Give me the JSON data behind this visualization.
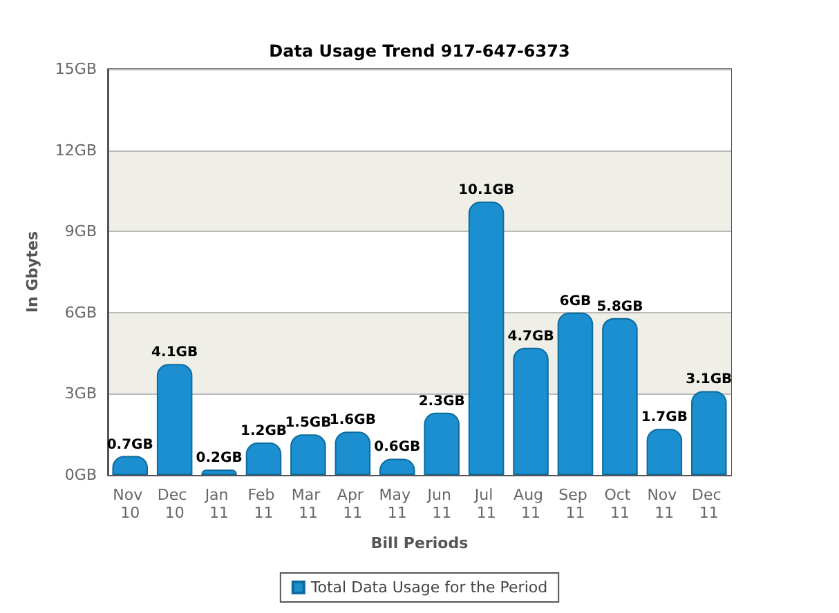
{
  "chart_data": {
    "type": "bar",
    "title": "Data Usage Trend 917-647-6373",
    "xlabel": "Bill Periods",
    "ylabel": "In Gbytes",
    "categories": [
      "Nov 10",
      "Dec 10",
      "Jan 11",
      "Feb 11",
      "Mar 11",
      "Apr 11",
      "May 11",
      "Jun 11",
      "Jul 11",
      "Aug 11",
      "Sep 11",
      "Oct 11",
      "Nov 11",
      "Dec 11"
    ],
    "series": [
      {
        "name": "Total Data Usage for the Period",
        "color": "#1b8fcf",
        "values": [
          0.7,
          4.1,
          0.2,
          1.2,
          1.5,
          1.6,
          0.6,
          2.3,
          10.1,
          4.7,
          6,
          5.8,
          1.7,
          3.1
        ],
        "value_labels": [
          "0.7GB",
          "4.1GB",
          "0.2GB",
          "1.2GB",
          "1.5GB",
          "1.6GB",
          "0.6GB",
          "2.3GB",
          "10.1GB",
          "4.7GB",
          "6GB",
          "5.8GB",
          "1.7GB",
          "3.1GB"
        ]
      }
    ],
    "ylim": [
      0,
      15
    ],
    "yticks": [
      {
        "value": 0,
        "label": "0GB"
      },
      {
        "value": 3,
        "label": "3GB"
      },
      {
        "value": 6,
        "label": "6GB"
      },
      {
        "value": 9,
        "label": "9GB"
      },
      {
        "value": 12,
        "label": "12GB"
      },
      {
        "value": 15,
        "label": "15GB"
      }
    ],
    "grid": "y",
    "legend": "bottom"
  }
}
